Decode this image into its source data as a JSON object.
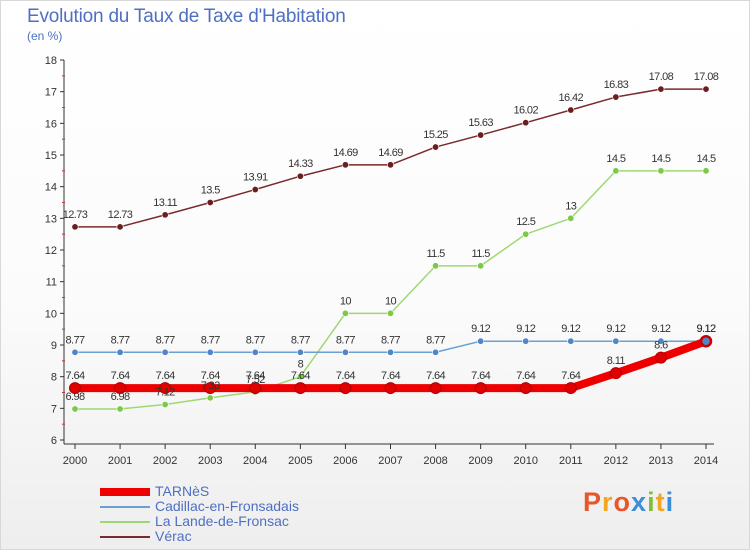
{
  "header": {
    "title": "Evolution du Taux de Taxe d'Habitation",
    "subtitle": "(en %)"
  },
  "brand": {
    "text": "Proxiti"
  },
  "chart_data": {
    "type": "line",
    "title": "Evolution du Taux de Taxe d'Habitation",
    "subtitle": "(en %)",
    "x": [
      2000,
      2001,
      2002,
      2003,
      2004,
      2005,
      2006,
      2007,
      2008,
      2009,
      2010,
      2011,
      2012,
      2013,
      2014
    ],
    "ylim": [
      6,
      18
    ],
    "yticks": [
      6,
      7,
      8,
      9,
      10,
      11,
      12,
      13,
      14,
      15,
      16,
      17,
      18
    ],
    "grid": false,
    "legend_position": "bottom-left",
    "series": [
      {
        "name": "TARNèS",
        "color": "#ee0000",
        "marker_color": "#e00000",
        "width": 8,
        "values": [
          7.64,
          7.64,
          7.64,
          7.64,
          7.64,
          7.64,
          7.64,
          7.64,
          7.64,
          7.64,
          7.64,
          7.64,
          8.11,
          8.6,
          9.12
        ],
        "labels": [
          "7.64",
          "7.64",
          "7.64",
          "7.64",
          "7.64",
          "7.64",
          "7.64",
          "7.64",
          "7.64",
          "7.64",
          "7.64",
          "7.64",
          "8.11",
          "8.6",
          "9.12"
        ]
      },
      {
        "name": "Cadillac-en-Fronsadais",
        "color": "#6a9fd4",
        "marker_color": "#4f86c6",
        "width": 1.5,
        "values": [
          8.77,
          8.77,
          8.77,
          8.77,
          8.77,
          8.77,
          8.77,
          8.77,
          8.77,
          9.12,
          9.12,
          9.12,
          9.12,
          9.12,
          9.12
        ],
        "labels": [
          "8.77",
          "8.77",
          "8.77",
          "8.77",
          "8.77",
          "8.77",
          "8.77",
          "8.77",
          "8.77",
          "9.12",
          "9.12",
          "9.12",
          "9.12",
          "9.12",
          "9.12"
        ]
      },
      {
        "name": "La Lande-de-Fronsac",
        "color": "#9ed873",
        "marker_color": "#7cc94a",
        "width": 1.5,
        "values": [
          6.98,
          6.98,
          7.12,
          7.33,
          7.52,
          8,
          10,
          10,
          11.5,
          11.5,
          12.5,
          13,
          14.5,
          14.5,
          14.5
        ],
        "labels": [
          "6.98",
          "6.98",
          "7.12",
          "7.33",
          "7.52",
          "8",
          "10",
          "10",
          "11.5",
          "11.5",
          "12.5",
          "13",
          "14.5",
          "14.5",
          "14.5"
        ]
      },
      {
        "name": "Vérac",
        "color": "#7a2a2a",
        "marker_color": "#6a1e1e",
        "width": 1.5,
        "values": [
          12.73,
          12.73,
          13.11,
          13.5,
          13.91,
          14.33,
          14.69,
          14.69,
          15.25,
          15.63,
          16.02,
          16.42,
          16.83,
          17.08,
          17.08
        ],
        "labels": [
          "12.73",
          "12.73",
          "13.11",
          "13.5",
          "13.91",
          "14.33",
          "14.69",
          "14.69",
          "15.25",
          "15.63",
          "16.02",
          "16.42",
          "16.83",
          "17.08",
          "17.08"
        ]
      }
    ]
  }
}
